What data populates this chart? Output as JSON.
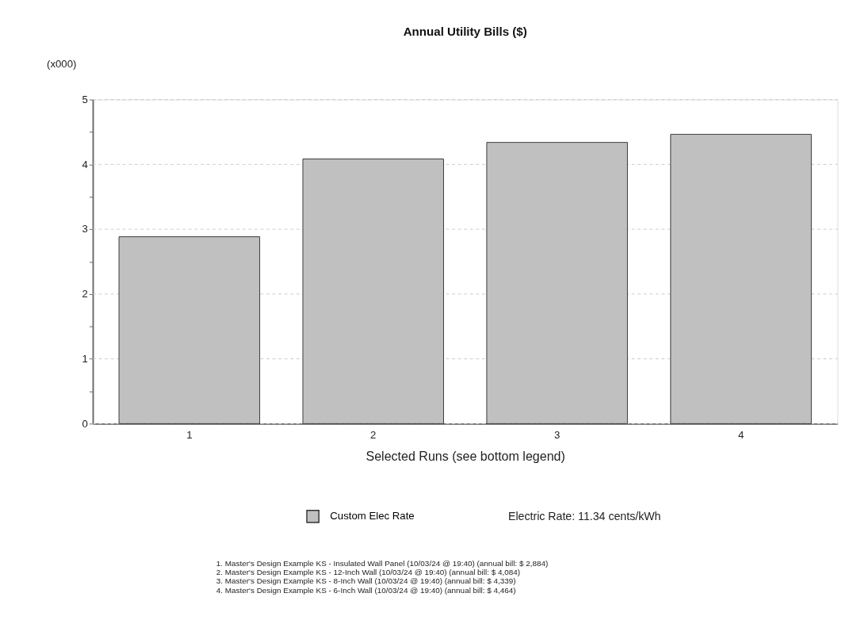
{
  "chart_data": {
    "type": "bar",
    "title": "Annual Utility Bills ($)",
    "xlabel": "Selected Runs (see bottom legend)",
    "ylabel": "(x000)",
    "categories": [
      "1",
      "2",
      "3",
      "4"
    ],
    "series": [
      {
        "name": "Custom Elec Rate",
        "color": "#c0c0c0",
        "values": [
          2.884,
          4.084,
          4.339,
          4.464
        ]
      }
    ],
    "ylim": [
      0,
      5
    ],
    "yticks": [
      0,
      {
        "value": 0.5,
        "label": null
      },
      1,
      {
        "value": 1.5,
        "label": null
      },
      2,
      {
        "value": 2.5,
        "label": null
      },
      3,
      {
        "value": 3.5,
        "label": null
      },
      4,
      {
        "value": 4.5,
        "label": null
      },
      5
    ],
    "grid": "y",
    "legend": "bottom",
    "annotations": [
      "Electric Rate: 11.34 cents/kWh",
      "1.  Master's Design Example KS - Insulated Wall Panel  (10/03/24 @ 19:40)  (annual bill: $ 2,884)",
      "2.  Master's Design Example KS - 12-Inch Wall  (10/03/24 @ 19:40)  (annual bill: $ 4,084)",
      "3.  Master's Design Example KS - 8-Inch Wall  (10/03/24 @ 19:40)  (annual bill: $ 4,339)",
      "4.  Master's Design Example KS - 6-Inch Wall  (10/03/24 @ 19:40)  (annual bill: $ 4,464)"
    ]
  }
}
